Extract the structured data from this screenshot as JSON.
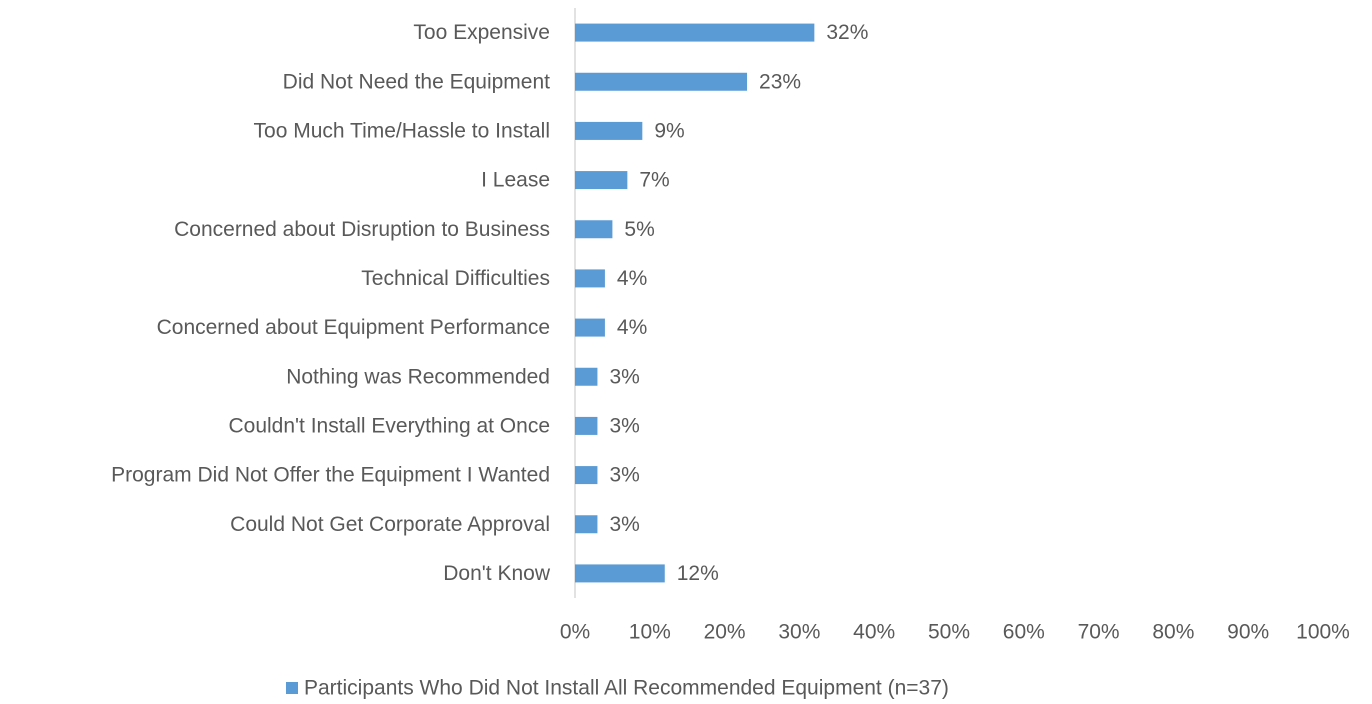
{
  "chart_data": {
    "type": "bar",
    "orientation": "horizontal",
    "categories": [
      "Too Expensive",
      "Did Not Need the Equipment",
      "Too Much Time/Hassle to Install",
      "I Lease",
      "Concerned about Disruption to Business",
      "Technical Difficulties",
      "Concerned about Equipment Performance",
      "Nothing was Recommended",
      "Couldn't Install Everything at Once",
      "Program Did Not Offer the Equipment I Wanted",
      "Could Not Get Corporate Approval",
      "Don't Know"
    ],
    "series": [
      {
        "name": "Participants Who Did Not Install All Recommended Equipment (n=37)",
        "color": "#5b9bd5",
        "values": [
          32,
          23,
          9,
          7,
          5,
          4,
          4,
          3,
          3,
          3,
          3,
          12
        ],
        "value_labels": [
          "32%",
          "23%",
          "9%",
          "7%",
          "5%",
          "4%",
          "4%",
          "3%",
          "3%",
          "3%",
          "3%",
          "12%"
        ]
      }
    ],
    "xlim": [
      0,
      100
    ],
    "xticks": [
      {
        "value": 0,
        "label": "0%"
      },
      {
        "value": 10,
        "label": "10%"
      },
      {
        "value": 20,
        "label": "20%"
      },
      {
        "value": 30,
        "label": "30%"
      },
      {
        "value": 40,
        "label": "40%"
      },
      {
        "value": 50,
        "label": "50%"
      },
      {
        "value": 60,
        "label": "60%"
      },
      {
        "value": 70,
        "label": "70%"
      },
      {
        "value": 80,
        "label": "80%"
      },
      {
        "value": 90,
        "label": "90%"
      },
      {
        "value": 100,
        "label": "100%"
      }
    ],
    "grid": false,
    "legend": "bottom"
  }
}
